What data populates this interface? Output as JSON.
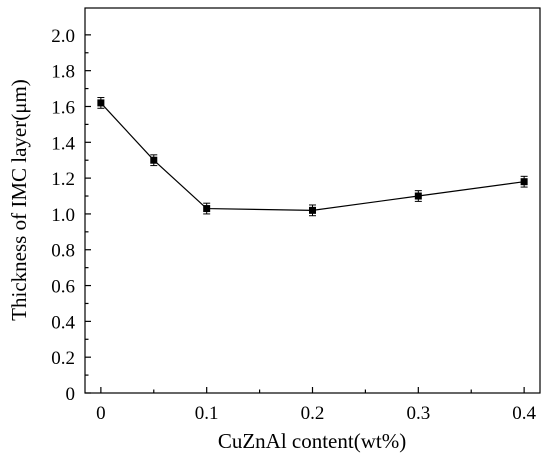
{
  "chart_data": {
    "type": "line",
    "title": "",
    "xlabel": "CuZnAl content(wt%)",
    "ylabel": "Thickness of IMC layer(μm)",
    "xlim": [
      -0.015,
      0.415
    ],
    "ylim": [
      0,
      2.15
    ],
    "xticks": [
      0,
      0.1,
      0.2,
      0.3,
      0.4
    ],
    "xtick_labels": [
      "0",
      "0.1",
      "0.2",
      "0.3",
      "0.4"
    ],
    "yticks": [
      0,
      0.2,
      0.4,
      0.6,
      0.8,
      1.0,
      1.2,
      1.4,
      1.6,
      1.8,
      2.0
    ],
    "ytick_labels": [
      "0",
      "0.2",
      "0.4",
      "0.6",
      "0.8",
      "1.0",
      "1.2",
      "1.4",
      "1.6",
      "1.8",
      "2.0"
    ],
    "grid": false,
    "marker": "square",
    "series": [
      {
        "x": [
          0,
          0.05,
          0.1,
          0.2,
          0.3,
          0.4
        ],
        "y": [
          1.62,
          1.3,
          1.03,
          1.02,
          1.1,
          1.18
        ],
        "error": [
          0.03,
          0.03,
          0.03,
          0.03,
          0.03,
          0.03
        ],
        "color": "#000000"
      }
    ]
  }
}
